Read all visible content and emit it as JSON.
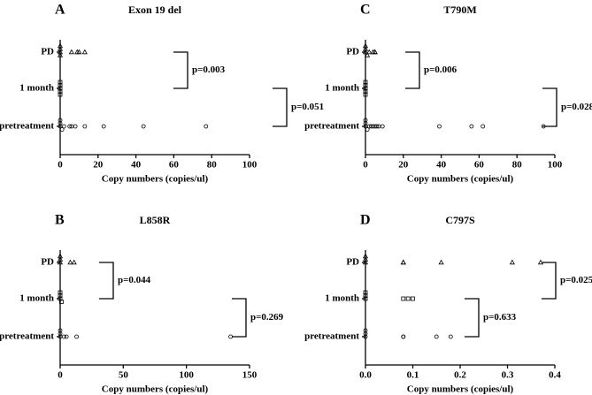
{
  "chart_data": [
    {
      "type": "dot",
      "panel": "A",
      "title": "Exon 19 del",
      "xlabel": "Copy numbers (copies/ul)",
      "categories": [
        "PD",
        "1 month",
        "pretreatment"
      ],
      "markers": [
        "triangle",
        "square",
        "circle"
      ],
      "values": [
        [
          0,
          0,
          0,
          0,
          6,
          9,
          10,
          13
        ],
        [
          0,
          0,
          0,
          0,
          0
        ],
        [
          0,
          0,
          0,
          1,
          2,
          5,
          6,
          8,
          13,
          23,
          44,
          77
        ]
      ],
      "xlim": [
        0,
        100
      ],
      "xticks": [
        0,
        20,
        40,
        60,
        80,
        100
      ],
      "annotations": [
        "p=0.003",
        "p=0.051"
      ]
    },
    {
      "type": "dot",
      "panel": "C",
      "title": "T790M",
      "xlabel": "Copy numbers (copies/ul)",
      "categories": [
        "PD",
        "1 month",
        "pretreatment"
      ],
      "markers": [
        "triangle",
        "square",
        "circle"
      ],
      "values": [
        [
          0,
          0,
          0,
          1,
          2,
          4,
          5,
          5
        ],
        [
          0,
          0,
          0,
          0,
          0
        ],
        [
          0,
          0,
          0,
          1,
          2,
          3,
          4,
          5,
          6,
          7,
          9,
          39,
          56,
          62,
          94
        ]
      ],
      "xlim": [
        0,
        100
      ],
      "xticks": [
        0,
        20,
        40,
        60,
        80,
        100
      ],
      "annotations": [
        "p=0.006",
        "p=0.028"
      ]
    },
    {
      "type": "dot",
      "panel": "B",
      "title": "L858R",
      "xlabel": "Copy numbers (copies/ul)",
      "categories": [
        "PD",
        "1 month",
        "pretreatment"
      ],
      "markers": [
        "triangle",
        "square",
        "circle"
      ],
      "values": [
        [
          0,
          0,
          0,
          8,
          11
        ],
        [
          0,
          0,
          0,
          1
        ],
        [
          0,
          0,
          0,
          3,
          5,
          13,
          135
        ]
      ],
      "xlim": [
        0,
        150
      ],
      "xticks": [
        0,
        50,
        100,
        150
      ],
      "annotations": [
        "p=0.044",
        "p=0.269"
      ]
    },
    {
      "type": "dot",
      "panel": "D",
      "title": "C797S",
      "xlabel": "Copy numbers (copies/ul)",
      "categories": [
        "PD",
        "1 month",
        "pretreatment"
      ],
      "markers": [
        "triangle",
        "square",
        "circle"
      ],
      "values": [
        [
          0,
          0,
          0,
          0.08,
          0.08,
          0.16,
          0.31,
          0.37
        ],
        [
          0,
          0,
          0,
          0.08,
          0.09,
          0.1
        ],
        [
          0,
          0,
          0,
          0.08,
          0.08,
          0.15,
          0.18
        ]
      ],
      "xlim": [
        0,
        0.4
      ],
      "xticks": [
        {
          "value": 0,
          "label": "0.0"
        },
        0.1,
        0.2,
        0.3,
        0.4
      ],
      "annotations": [
        "p=0.025",
        "p=0.633"
      ]
    }
  ]
}
